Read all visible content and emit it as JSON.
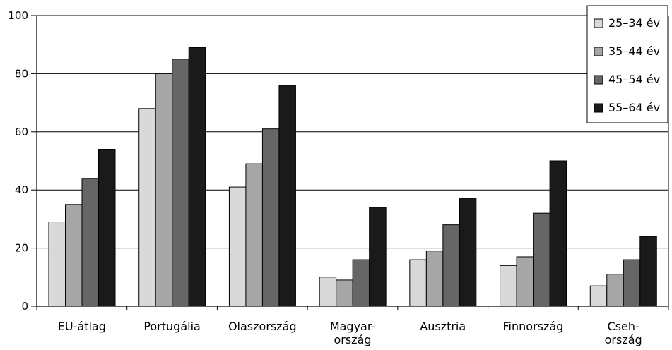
{
  "chart_data": {
    "type": "bar",
    "title": "",
    "xlabel": "",
    "ylabel": "",
    "ylim": [
      0,
      100
    ],
    "yticks": [
      0,
      20,
      40,
      60,
      80,
      100
    ],
    "grid": true,
    "legend_position": "top-right",
    "categories": [
      [
        "EU-átlag"
      ],
      [
        "Portugália"
      ],
      [
        "Olaszország"
      ],
      [
        "Magyar-",
        "ország"
      ],
      [
        "Ausztria"
      ],
      [
        "Finnország"
      ],
      [
        "Cseh-",
        "ország"
      ]
    ],
    "series": [
      {
        "name": "25–34 év",
        "color": "#d9d9d9",
        "values": [
          29,
          68,
          41,
          10,
          16,
          14,
          7
        ]
      },
      {
        "name": "35–44 év",
        "color": "#a6a6a6",
        "values": [
          35,
          80,
          49,
          9,
          19,
          17,
          11
        ]
      },
      {
        "name": "45–54 év",
        "color": "#666666",
        "values": [
          44,
          85,
          61,
          16,
          28,
          32,
          16
        ]
      },
      {
        "name": "55–64 év",
        "color": "#1a1a1a",
        "values": [
          54,
          89,
          76,
          34,
          37,
          50,
          24
        ]
      }
    ]
  }
}
